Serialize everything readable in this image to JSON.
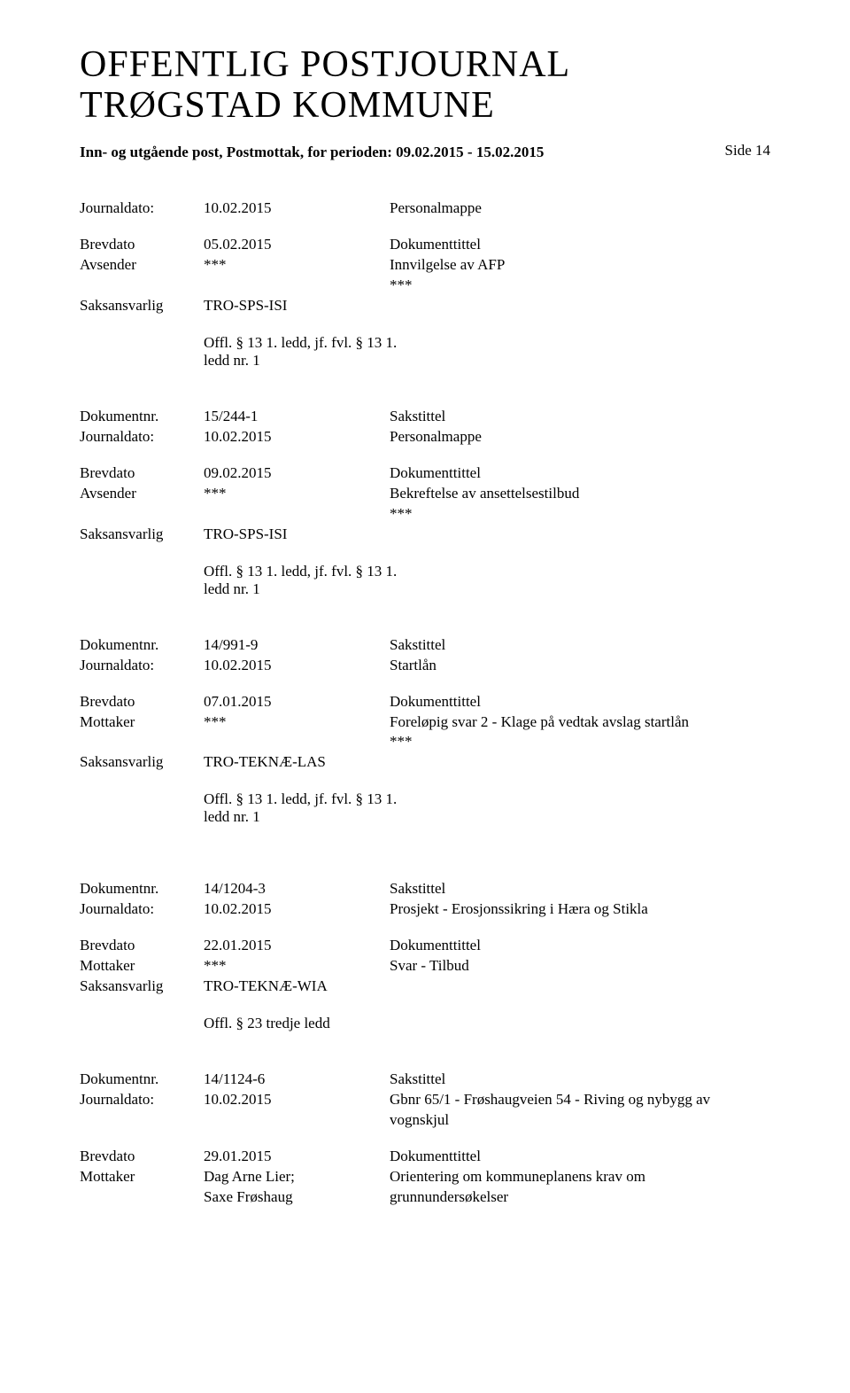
{
  "header": {
    "title_line1": "OFFENTLIG POSTJOURNAL",
    "title_line2": "TRØGSTAD KOMMUNE",
    "period": "Inn- og utgående post, Postmottak, for perioden: 09.02.2015 - 15.02.2015",
    "side_label": "Side 14"
  },
  "labels": {
    "journaldato": "Journaldato:",
    "brevdato": "Brevdato",
    "avsender": "Avsender",
    "mottaker": "Mottaker",
    "saksansvarlig": "Saksansvarlig",
    "dokumentnr": "Dokumentnr.",
    "sakstittel": "Sakstittel",
    "dokumenttittel": "Dokumenttittel"
  },
  "entries": [
    {
      "journaldato": "10.02.2015",
      "jd_right": "Personalmappe",
      "brevdato": "05.02.2015",
      "party_label": "Avsender",
      "party_value": "***",
      "doc_title": "Innvilgelse av AFP",
      "doc_title_extra": "***",
      "ansvarlig": "TRO-SPS-ISI",
      "offl": "Offl. § 13 1. ledd, jf. fvl. § 13 1. ledd nr. 1"
    },
    {
      "dokumentnr": "15/244-1",
      "journaldato": "10.02.2015",
      "jd_right": "Personalmappe",
      "brevdato": "09.02.2015",
      "party_label": "Avsender",
      "party_value": "***",
      "doc_title": "Bekreftelse av ansettelsestilbud",
      "doc_title_extra": "***",
      "ansvarlig": "TRO-SPS-ISI",
      "offl": "Offl. § 13 1. ledd, jf. fvl. § 13 1. ledd nr. 1"
    },
    {
      "dokumentnr": "14/991-9",
      "journaldato": "10.02.2015",
      "jd_right": "Startlån",
      "brevdato": "07.01.2015",
      "party_label": "Mottaker",
      "party_value": "***",
      "doc_title": "Foreløpig svar 2 - Klage på vedtak avslag startlån",
      "doc_title_extra": "***",
      "ansvarlig": "TRO-TEKNÆ-LAS",
      "offl": "Offl. § 13 1. ledd, jf. fvl. § 13 1. ledd nr. 1"
    },
    {
      "dokumentnr": "14/1204-3",
      "journaldato": "10.02.2015",
      "jd_right": "Prosjekt - Erosjonssikring i Hæra og Stikla",
      "brevdato": "22.01.2015",
      "party_label": "Mottaker",
      "party_value": "***",
      "doc_title": "Svar - Tilbud",
      "ansvarlig": "TRO-TEKNÆ-WIA",
      "offl": "Offl. § 23 tredje ledd",
      "extra_gap": true
    },
    {
      "dokumentnr": "14/1124-6",
      "journaldato": "10.02.2015",
      "jd_right": "Gbnr 65/1 - Frøshaugveien 54 - Riving og nybygg av vognskjul",
      "brevdato": "29.01.2015",
      "party_label": "Mottaker",
      "party_value": "Dag Arne Lier;",
      "party_value2": "Saxe Frøshaug",
      "doc_title": "Orientering om kommuneplanens krav om",
      "doc_title_extra": "grunnundersøkelser"
    }
  ]
}
